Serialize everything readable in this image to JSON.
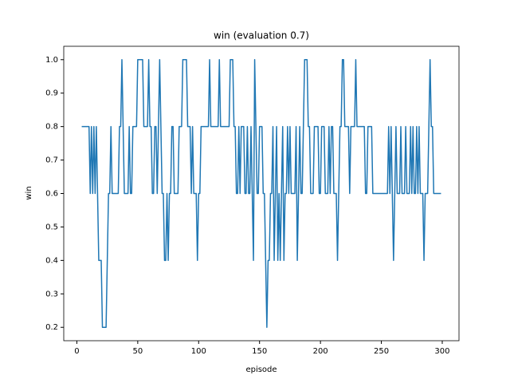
{
  "chart_data": {
    "type": "line",
    "title": "win (evaluation 0.7)",
    "x_label": "episode",
    "y_label": "win",
    "x": [
      4,
      5,
      6,
      7,
      8,
      9,
      10,
      11,
      12,
      13,
      14,
      15,
      16,
      17,
      18,
      19,
      20,
      21,
      22,
      23,
      24,
      25,
      26,
      27,
      28,
      29,
      30,
      31,
      32,
      33,
      34,
      35,
      36,
      37,
      38,
      39,
      40,
      41,
      42,
      43,
      44,
      45,
      46,
      47,
      48,
      49,
      50,
      51,
      52,
      53,
      54,
      55,
      56,
      57,
      58,
      59,
      60,
      61,
      62,
      63,
      64,
      65,
      66,
      67,
      68,
      69,
      70,
      71,
      72,
      73,
      74,
      75,
      76,
      77,
      78,
      79,
      80,
      81,
      82,
      83,
      84,
      85,
      86,
      87,
      88,
      89,
      90,
      91,
      92,
      93,
      94,
      95,
      96,
      97,
      98,
      99,
      100,
      101,
      102,
      103,
      104,
      105,
      106,
      107,
      108,
      109,
      110,
      111,
      112,
      113,
      114,
      115,
      116,
      117,
      118,
      119,
      120,
      121,
      122,
      123,
      124,
      125,
      126,
      127,
      128,
      129,
      130,
      131,
      132,
      133,
      134,
      135,
      136,
      137,
      138,
      139,
      140,
      141,
      142,
      143,
      144,
      145,
      146,
      147,
      148,
      149,
      150,
      151,
      152,
      153,
      154,
      155,
      156,
      157,
      158,
      159,
      160,
      161,
      162,
      163,
      164,
      165,
      166,
      167,
      168,
      169,
      170,
      171,
      172,
      173,
      174,
      175,
      176,
      177,
      178,
      179,
      180,
      181,
      182,
      183,
      184,
      185,
      186,
      187,
      188,
      189,
      190,
      191,
      192,
      193,
      194,
      195,
      196,
      197,
      198,
      199,
      200,
      201,
      202,
      203,
      204,
      205,
      206,
      207,
      208,
      209,
      210,
      211,
      212,
      213,
      214,
      215,
      216,
      217,
      218,
      219,
      220,
      221,
      222,
      223,
      224,
      225,
      226,
      227,
      228,
      229,
      230,
      231,
      232,
      233,
      234,
      235,
      236,
      237,
      238,
      239,
      240,
      241,
      242,
      243,
      244,
      245,
      246,
      247,
      248,
      249,
      250,
      251,
      252,
      253,
      254,
      255,
      256,
      257,
      258,
      259,
      260,
      261,
      262,
      263,
      264,
      265,
      266,
      267,
      268,
      269,
      270,
      271,
      272,
      273,
      274,
      275,
      276,
      277,
      278,
      279,
      280,
      281,
      282,
      283,
      284,
      285,
      286,
      287,
      288,
      289,
      290,
      291,
      292,
      293,
      294,
      295,
      296,
      297,
      298,
      299
    ],
    "series": [
      {
        "name": "win",
        "color": "#1f77b4",
        "values": [
          0.8,
          0.8,
          0.8,
          0.8,
          0.8,
          0.8,
          0.8,
          0.6,
          0.8,
          0.6,
          0.8,
          0.6,
          0.8,
          0.6,
          0.4,
          0.4,
          0.4,
          0.2,
          0.2,
          0.2,
          0.2,
          0.4,
          0.6,
          0.6,
          0.8,
          0.6,
          0.6,
          0.6,
          0.6,
          0.6,
          0.6,
          0.8,
          0.8,
          1.0,
          0.8,
          0.6,
          0.6,
          0.6,
          0.6,
          0.8,
          0.6,
          0.6,
          0.8,
          0.8,
          0.8,
          0.8,
          1.0,
          1.0,
          1.0,
          1.0,
          1.0,
          0.8,
          0.8,
          0.8,
          0.8,
          1.0,
          0.8,
          0.8,
          0.6,
          0.6,
          0.8,
          0.8,
          0.6,
          0.8,
          1.0,
          0.8,
          0.6,
          0.6,
          0.4,
          0.4,
          0.6,
          0.4,
          0.6,
          0.6,
          0.8,
          0.8,
          0.6,
          0.6,
          0.6,
          0.6,
          0.8,
          0.8,
          0.8,
          1.0,
          1.0,
          1.0,
          1.0,
          0.8,
          0.8,
          0.8,
          0.6,
          0.8,
          0.6,
          0.6,
          0.6,
          0.4,
          0.6,
          0.6,
          0.8,
          0.8,
          0.8,
          0.8,
          0.8,
          0.8,
          0.8,
          1.0,
          0.8,
          0.8,
          0.8,
          0.8,
          0.8,
          0.8,
          0.8,
          1.0,
          0.8,
          0.8,
          0.8,
          0.8,
          0.8,
          0.8,
          0.8,
          0.8,
          1.0,
          1.0,
          1.0,
          0.8,
          0.8,
          0.6,
          0.6,
          0.8,
          0.6,
          0.8,
          0.8,
          0.8,
          0.6,
          0.6,
          0.8,
          0.6,
          0.6,
          0.8,
          0.6,
          0.4,
          1.0,
          0.8,
          0.6,
          0.6,
          0.8,
          0.8,
          0.8,
          0.6,
          0.6,
          0.4,
          0.2,
          0.4,
          0.4,
          0.6,
          0.6,
          0.8,
          0.4,
          0.6,
          0.8,
          0.4,
          0.6,
          0.4,
          0.6,
          0.8,
          0.4,
          0.6,
          0.6,
          0.8,
          0.6,
          0.8,
          0.6,
          0.6,
          0.6,
          0.6,
          0.8,
          0.4,
          0.6,
          0.8,
          0.6,
          0.6,
          0.8,
          1.0,
          1.0,
          1.0,
          0.8,
          0.8,
          0.6,
          0.6,
          0.6,
          0.8,
          0.8,
          0.8,
          0.8,
          0.6,
          0.6,
          0.8,
          0.8,
          0.8,
          0.6,
          0.6,
          0.6,
          0.8,
          0.6,
          0.8,
          0.8,
          0.6,
          0.6,
          0.6,
          0.4,
          0.6,
          0.8,
          0.8,
          1.0,
          1.0,
          0.8,
          0.8,
          0.8,
          0.8,
          0.6,
          0.8,
          0.8,
          0.8,
          0.8,
          1.0,
          0.8,
          0.8,
          0.8,
          0.8,
          0.8,
          0.8,
          0.8,
          0.6,
          0.6,
          0.8,
          0.8,
          0.8,
          0.8,
          0.6,
          0.6,
          0.6,
          0.6,
          0.6,
          0.6,
          0.6,
          0.6,
          0.6,
          0.6,
          0.6,
          0.6,
          0.6,
          0.8,
          0.6,
          0.8,
          0.6,
          0.4,
          0.6,
          0.8,
          0.6,
          0.6,
          0.6,
          0.8,
          0.6,
          0.6,
          0.6,
          0.8,
          0.6,
          0.6,
          0.6,
          0.8,
          0.6,
          0.8,
          0.6,
          0.6,
          0.8,
          0.6,
          0.8,
          0.6,
          0.6,
          0.6,
          0.4,
          0.6,
          0.6,
          0.6,
          0.8,
          1.0,
          0.8,
          0.8,
          0.6,
          0.6,
          0.6,
          0.6,
          0.6,
          0.6,
          0.6
        ]
      }
    ],
    "xlim": [
      -10.75,
      313.75
    ],
    "xticks": [
      0,
      50,
      100,
      150,
      200,
      250,
      300
    ],
    "ylim": [
      0.16,
      1.04
    ],
    "yticks": [
      0.2,
      0.3,
      0.4,
      0.5,
      0.6,
      0.7,
      0.8,
      0.9,
      {
        "value": 1,
        "label": "1.0"
      }
    ]
  }
}
